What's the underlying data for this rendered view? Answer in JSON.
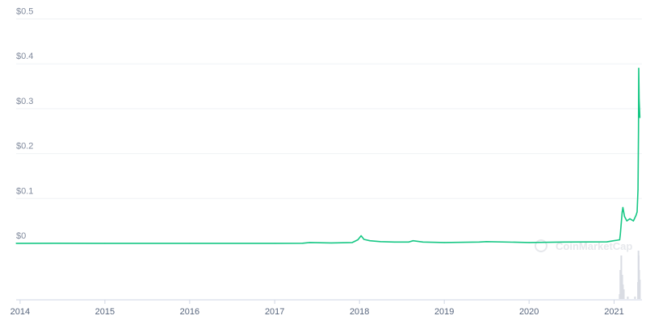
{
  "chart_data": {
    "type": "line",
    "title": "",
    "xlabel": "",
    "ylabel": "",
    "ylim": [
      0,
      0.5
    ],
    "xlim": [
      "2013-12-15",
      "2021-05-01"
    ],
    "grid": true,
    "y_ticks": [
      "$0",
      "$0.1",
      "$0.2",
      "$0.3",
      "$0.4",
      "$0.5"
    ],
    "y_tick_values": [
      0,
      0.1,
      0.2,
      0.3,
      0.4,
      0.5
    ],
    "x_ticks": [
      "2014",
      "2015",
      "2016",
      "2017",
      "2018",
      "2019",
      "2020",
      "2021"
    ],
    "x_tick_dates": [
      "2014-01-01",
      "2015-01-01",
      "2016-01-01",
      "2017-01-01",
      "2018-01-01",
      "2019-01-01",
      "2020-01-01",
      "2021-01-01"
    ],
    "line_color": "#16c784",
    "volume_color": "#d9dce3",
    "watermark": "CoinMarketCap",
    "series": [
      {
        "x": [
          "2013-12-15",
          "2014-06-01",
          "2015-01-01",
          "2016-01-01",
          "2017-01-01",
          "2017-05-01",
          "2017-06-01",
          "2017-09-01",
          "2017-12-01",
          "2017-12-25",
          "2018-01-08",
          "2018-01-20",
          "2018-02-15",
          "2018-04-01",
          "2018-06-01",
          "2018-08-01",
          "2018-08-20",
          "2018-10-01",
          "2019-01-01",
          "2019-06-01",
          "2019-07-01",
          "2020-01-01",
          "2020-06-01",
          "2020-12-01",
          "2021-01-25",
          "2021-01-28",
          "2021-02-05",
          "2021-02-08",
          "2021-02-15",
          "2021-02-25",
          "2021-03-10",
          "2021-03-25",
          "2021-04-05",
          "2021-04-10",
          "2021-04-14",
          "2021-04-16",
          "2021-04-17",
          "2021-04-19",
          "2021-04-22"
        ],
        "y": [
          0.0002,
          0.0003,
          0.0002,
          0.0002,
          0.0002,
          0.0004,
          0.002,
          0.001,
          0.002,
          0.008,
          0.017,
          0.009,
          0.006,
          0.004,
          0.003,
          0.003,
          0.006,
          0.003,
          0.002,
          0.003,
          0.004,
          0.002,
          0.003,
          0.0035,
          0.008,
          0.02,
          0.07,
          0.08,
          0.06,
          0.05,
          0.055,
          0.05,
          0.062,
          0.07,
          0.12,
          0.25,
          0.39,
          0.32,
          0.28
        ]
      }
    ],
    "volume": {
      "x": [
        "2021-01-25",
        "2021-01-28",
        "2021-02-01",
        "2021-02-05",
        "2021-02-08",
        "2021-02-12",
        "2021-03-01",
        "2021-04-01",
        "2021-04-14",
        "2021-04-16",
        "2021-04-17",
        "2021-04-19",
        "2021-04-22"
      ],
      "v": [
        0.1,
        0.6,
        0.9,
        0.5,
        0.3,
        0.2,
        0.05,
        0.05,
        0.35,
        1.0,
        0.9,
        0.6,
        0.4
      ]
    }
  }
}
